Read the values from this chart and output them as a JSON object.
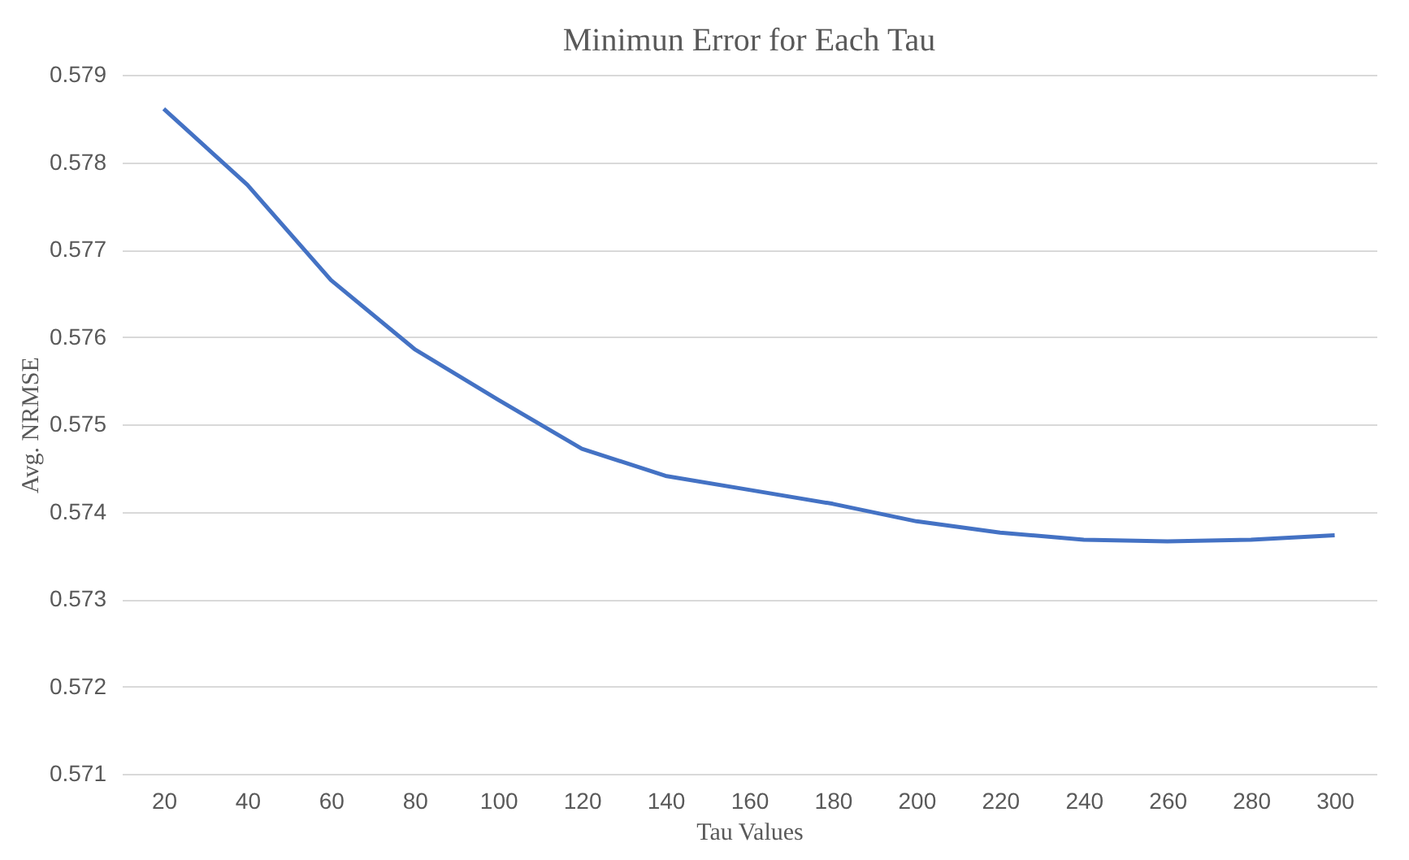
{
  "chart_data": {
    "type": "line",
    "title": "Minimun Error for Each Tau",
    "xlabel": "Tau Values",
    "ylabel": "Avg. NRMSE",
    "categories": [
      "20",
      "40",
      "60",
      "80",
      "100",
      "120",
      "140",
      "160",
      "180",
      "200",
      "220",
      "240",
      "260",
      "280",
      "300"
    ],
    "series": [
      {
        "color": "#4472c4",
        "values": [
          0.57861,
          0.57774,
          0.57665,
          0.57586,
          0.57528,
          0.57472,
          0.57441,
          0.57425,
          0.57409,
          0.57389,
          0.57376,
          0.57368,
          0.57366,
          0.57368,
          0.57373
        ]
      }
    ],
    "ylim": [
      0.571,
      0.579
    ],
    "yticks": [
      0.571,
      0.572,
      0.573,
      0.574,
      0.575,
      0.576,
      0.577,
      0.578,
      0.579
    ],
    "grid": "y",
    "legend": false,
    "marker": "none",
    "line_style": "solid"
  }
}
